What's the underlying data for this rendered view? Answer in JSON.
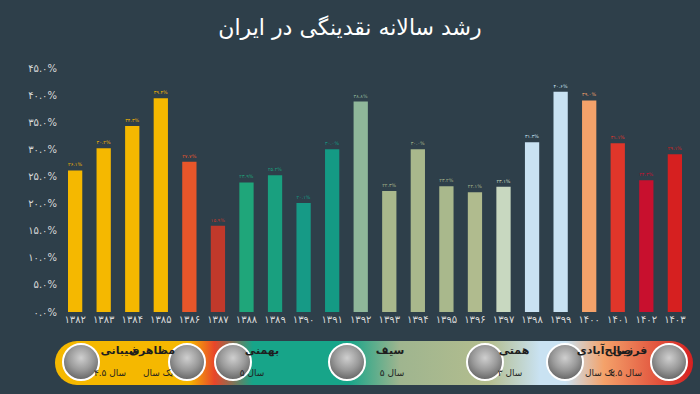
{
  "chart_data": {
    "type": "bar",
    "title": "رشد سالانه نقدینگی در ایران",
    "categories": [
      "۱۳۸۲",
      "۱۳۸۳",
      "۱۳۸۴",
      "۱۳۸۵",
      "۱۳۸۶",
      "۱۳۸۷",
      "۱۳۸۸",
      "۱۳۸۹",
      "۱۳۹۰",
      "۱۳۹۱",
      "۱۳۹۲",
      "۱۳۹۳",
      "۱۳۹۴",
      "۱۳۹۵",
      "۱۳۹۶",
      "۱۳۹۷",
      "۱۳۹۸",
      "۱۳۹۹",
      "۱۴۰۰",
      "۱۴۰۱",
      "۱۴۰۲",
      "۱۴۰۳"
    ],
    "values": [
      26.1,
      30.2,
      34.3,
      39.4,
      27.7,
      15.9,
      23.9,
      25.2,
      20.1,
      30.0,
      38.8,
      22.3,
      30.0,
      23.2,
      22.1,
      23.1,
      31.3,
      40.6,
      39.0,
      31.1,
      24.3,
      29.1
    ],
    "value_labels": [
      "۲۶.۱%",
      "۳۰.۲%",
      "۳۴.۳%",
      "۳۹.۴%",
      "۲۷.۷%",
      "۱۵.۹%",
      "۲۳.۹%",
      "۲۵.۲%",
      "۲۰.۱%",
      "۳۰.۰%",
      "۳۸.۸%",
      "۲۲.۳%",
      "۳۰.۰%",
      "۲۳.۲%",
      "۲۲.۱%",
      "۲۳.۱%",
      "۳۱.۳%",
      "۴۰.۶%",
      "۳۹.۰%",
      "۳۱.۱%",
      "۲۴.۳%",
      "۲۹.۱%"
    ],
    "colors": [
      "#f5b800",
      "#f5b800",
      "#f5b800",
      "#f5b800",
      "#e8562a",
      "#c0392b",
      "#1fa67a",
      "#19a07f",
      "#169a86",
      "#149a84",
      "#8fb79a",
      "#a9b88c",
      "#a9b88c",
      "#a9b88c",
      "#b0bb8e",
      "#c8d8c0",
      "#c9e2f2",
      "#c9e2f2",
      "#f4a26a",
      "#e0362a",
      "#c8102e",
      "#d62020"
    ],
    "ylim": [
      0,
      45
    ],
    "yticks": [
      {
        "value": 0,
        "label": "۰.۰%"
      },
      {
        "value": 5,
        "label": "۵.۰%"
      },
      {
        "value": 10,
        "label": "۱۰.۰%"
      },
      {
        "value": 15,
        "label": "۱۵.۰%"
      },
      {
        "value": 20,
        "label": "۲۰.۰%"
      },
      {
        "value": 25,
        "label": "۲۵.۰%"
      },
      {
        "value": 30,
        "label": "۳۰.۰%"
      },
      {
        "value": 35,
        "label": "۳۵.۰%"
      },
      {
        "value": 40,
        "label": "۴۰.۰%"
      },
      {
        "value": 45,
        "label": "۴۵.۰%"
      }
    ],
    "grid": false,
    "data_labels": true,
    "governors": [
      {
        "name": "شیبانی",
        "term": "۴.۵ سال"
      },
      {
        "name": "مظاهری",
        "term": "یک سال"
      },
      {
        "name": "بهمنی",
        "term": "۵ سال"
      },
      {
        "name": "سیف",
        "term": "۵ سال"
      },
      {
        "name": "همتی",
        "term": "۳ سال"
      },
      {
        "name": "صالح‌آبادی",
        "term": "یک سال"
      },
      {
        "name": "فرزین",
        "term": "۲.۵ سال"
      }
    ]
  }
}
